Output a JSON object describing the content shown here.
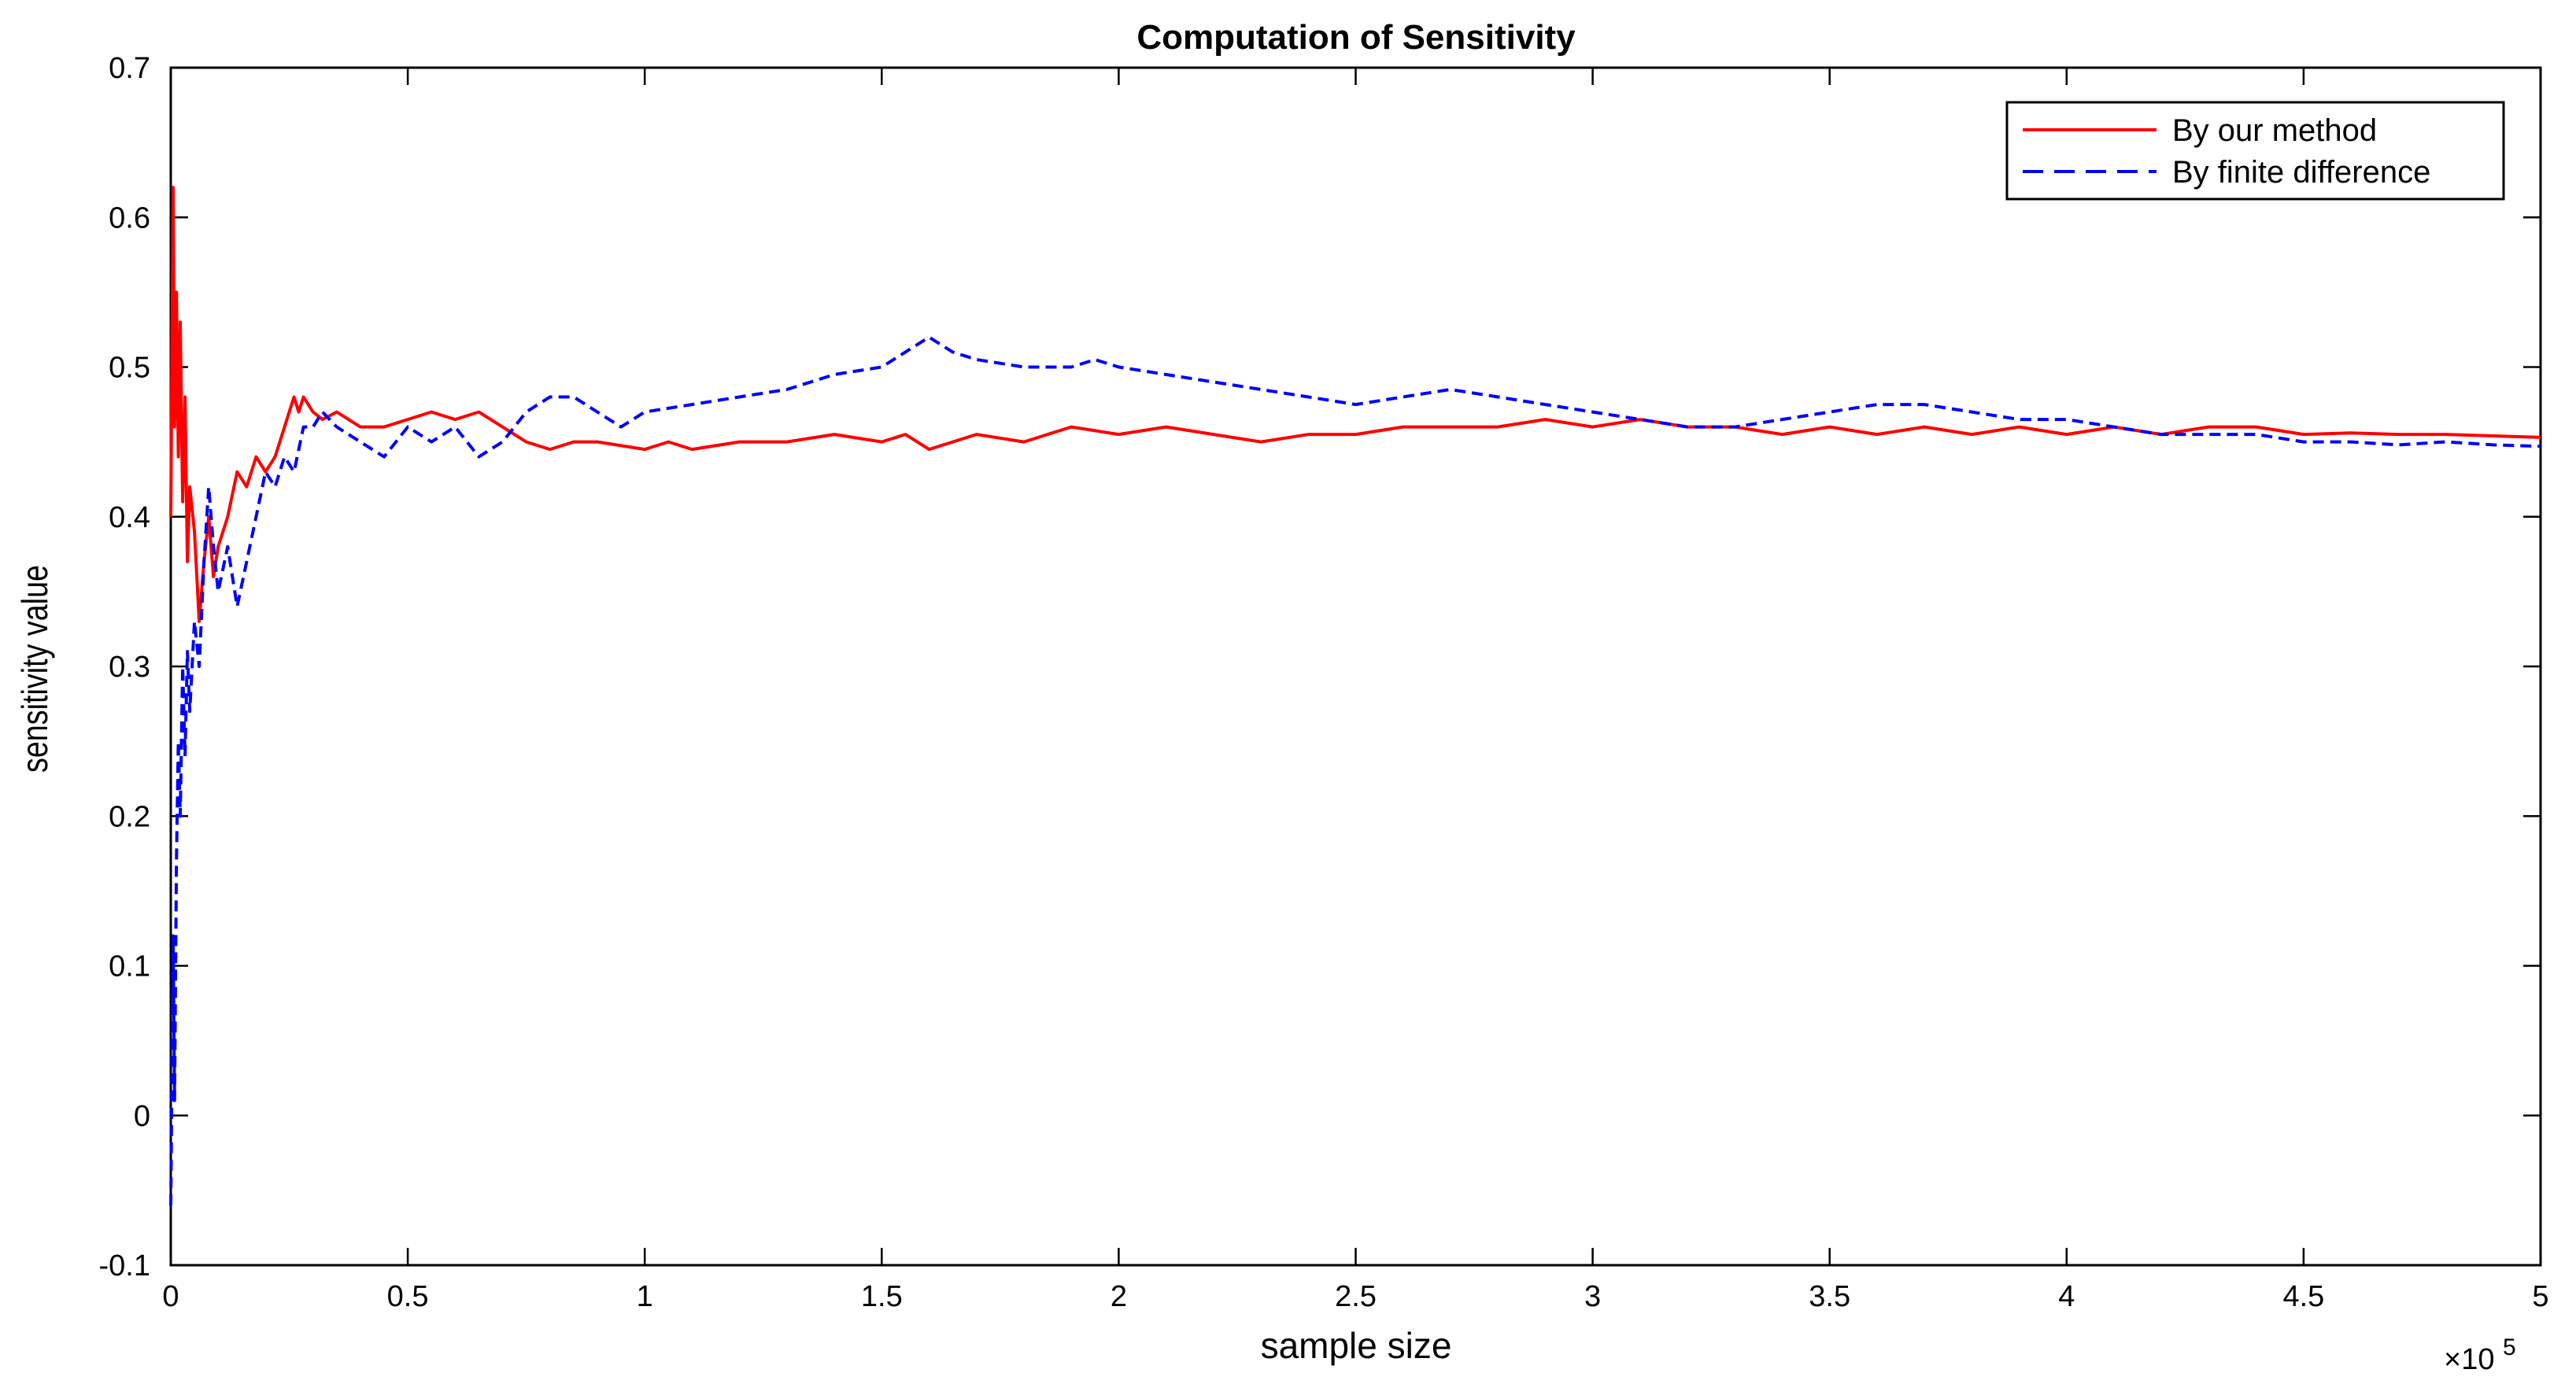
{
  "chart_data": {
    "type": "line",
    "title": "Computation of Sensitivity",
    "xlabel": "sample size",
    "ylabel": "sensitivity value",
    "x_exponent_base": "×10",
    "x_exponent_power": "5",
    "xlim": [
      0,
      5
    ],
    "ylim": [
      -0.1,
      0.7
    ],
    "xticks": [
      "0",
      "0.5",
      "1",
      "1.5",
      "2",
      "2.5",
      "3",
      "3.5",
      "4",
      "4.5",
      "5"
    ],
    "yticks": [
      "-0.1",
      "0",
      "0.1",
      "0.2",
      "0.3",
      "0.4",
      "0.5",
      "0.6",
      "0.7"
    ],
    "grid": false,
    "legend_position": "top-right",
    "series": [
      {
        "name": "By our method",
        "color": "#ff0000",
        "dash": "solid",
        "x": [
          0.0,
          0.005,
          0.008,
          0.012,
          0.016,
          0.02,
          0.025,
          0.03,
          0.035,
          0.04,
          0.05,
          0.06,
          0.07,
          0.08,
          0.09,
          0.1,
          0.12,
          0.14,
          0.16,
          0.18,
          0.2,
          0.22,
          0.24,
          0.26,
          0.27,
          0.28,
          0.3,
          0.32,
          0.35,
          0.4,
          0.45,
          0.5,
          0.55,
          0.6,
          0.65,
          0.7,
          0.75,
          0.8,
          0.85,
          0.9,
          1.0,
          1.05,
          1.1,
          1.2,
          1.3,
          1.4,
          1.5,
          1.55,
          1.6,
          1.65,
          1.7,
          1.8,
          1.9,
          2.0,
          2.1,
          2.2,
          2.3,
          2.4,
          2.5,
          2.6,
          2.7,
          2.8,
          2.9,
          3.0,
          3.1,
          3.2,
          3.3,
          3.4,
          3.5,
          3.6,
          3.7,
          3.8,
          3.9,
          4.0,
          4.1,
          4.2,
          4.3,
          4.4,
          4.5,
          4.6,
          4.7,
          4.8,
          4.9,
          5.0
        ],
        "y": [
          0.4,
          0.62,
          0.46,
          0.55,
          0.44,
          0.53,
          0.41,
          0.48,
          0.37,
          0.42,
          0.39,
          0.33,
          0.37,
          0.4,
          0.36,
          0.38,
          0.4,
          0.43,
          0.42,
          0.44,
          0.43,
          0.44,
          0.46,
          0.48,
          0.47,
          0.48,
          0.47,
          0.465,
          0.47,
          0.46,
          0.46,
          0.465,
          0.47,
          0.465,
          0.47,
          0.46,
          0.45,
          0.445,
          0.45,
          0.45,
          0.445,
          0.45,
          0.445,
          0.45,
          0.45,
          0.455,
          0.45,
          0.455,
          0.445,
          0.45,
          0.455,
          0.45,
          0.46,
          0.455,
          0.46,
          0.455,
          0.45,
          0.455,
          0.455,
          0.46,
          0.46,
          0.46,
          0.465,
          0.46,
          0.465,
          0.46,
          0.46,
          0.455,
          0.46,
          0.455,
          0.46,
          0.455,
          0.46,
          0.455,
          0.46,
          0.455,
          0.46,
          0.46,
          0.455,
          0.456,
          0.455,
          0.455,
          0.454,
          0.453
        ]
      },
      {
        "name": "By finite difference",
        "color": "#0000ff",
        "dash": "dashed",
        "x": [
          0.0,
          0.005,
          0.008,
          0.012,
          0.016,
          0.02,
          0.025,
          0.03,
          0.035,
          0.04,
          0.05,
          0.06,
          0.07,
          0.08,
          0.09,
          0.1,
          0.12,
          0.14,
          0.16,
          0.18,
          0.2,
          0.22,
          0.24,
          0.26,
          0.28,
          0.3,
          0.32,
          0.35,
          0.4,
          0.45,
          0.5,
          0.55,
          0.6,
          0.65,
          0.7,
          0.75,
          0.8,
          0.85,
          0.9,
          0.95,
          1.0,
          1.1,
          1.2,
          1.3,
          1.4,
          1.5,
          1.55,
          1.6,
          1.65,
          1.7,
          1.8,
          1.9,
          1.95,
          2.0,
          2.1,
          2.2,
          2.3,
          2.4,
          2.5,
          2.6,
          2.7,
          2.8,
          2.9,
          3.0,
          3.1,
          3.2,
          3.3,
          3.4,
          3.5,
          3.6,
          3.7,
          3.8,
          3.9,
          4.0,
          4.1,
          4.2,
          4.3,
          4.4,
          4.5,
          4.6,
          4.7,
          4.8,
          4.9,
          5.0
        ],
        "y": [
          -0.06,
          0.12,
          0.01,
          0.17,
          0.25,
          0.2,
          0.3,
          0.24,
          0.31,
          0.27,
          0.33,
          0.3,
          0.37,
          0.42,
          0.38,
          0.35,
          0.38,
          0.34,
          0.37,
          0.4,
          0.43,
          0.42,
          0.44,
          0.43,
          0.46,
          0.46,
          0.47,
          0.46,
          0.45,
          0.44,
          0.46,
          0.45,
          0.46,
          0.44,
          0.45,
          0.47,
          0.48,
          0.48,
          0.47,
          0.46,
          0.47,
          0.475,
          0.48,
          0.485,
          0.495,
          0.5,
          0.51,
          0.52,
          0.51,
          0.505,
          0.5,
          0.5,
          0.505,
          0.5,
          0.495,
          0.49,
          0.485,
          0.48,
          0.475,
          0.48,
          0.485,
          0.48,
          0.475,
          0.47,
          0.465,
          0.46,
          0.46,
          0.465,
          0.47,
          0.475,
          0.475,
          0.47,
          0.465,
          0.465,
          0.46,
          0.455,
          0.455,
          0.455,
          0.45,
          0.45,
          0.448,
          0.45,
          0.448,
          0.447
        ]
      }
    ]
  }
}
